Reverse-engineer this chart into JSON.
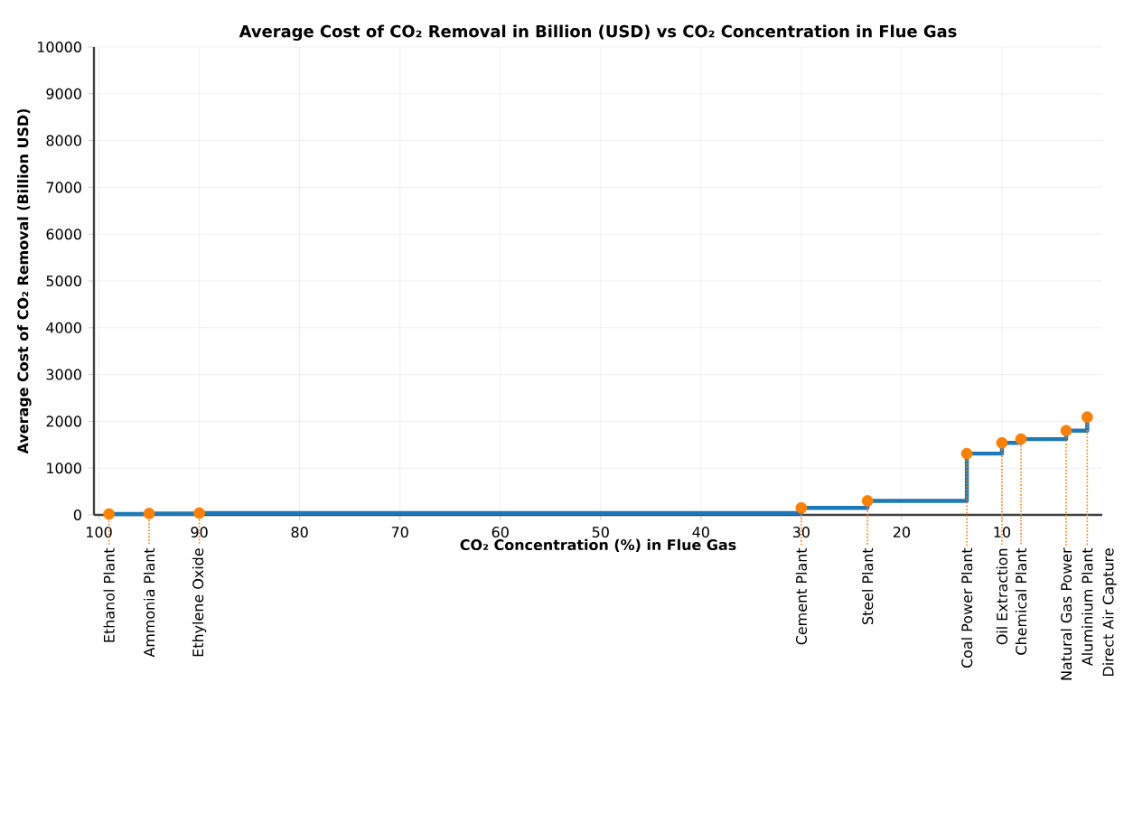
{
  "chart_data": {
    "type": "step",
    "title": "Average Cost of CO₂ Removal in Billion (USD) vs CO₂ Concentration in Flue Gas",
    "xlabel": "CO₂ Concentration (%) in Flue Gas",
    "ylabel": "Average Cost of CO₂ Removal (Billion USD)",
    "series": [
      {
        "color": "#1f77b4",
        "x": [
          99,
          95,
          90,
          30,
          23.4,
          13.5,
          10,
          8.1,
          3.6,
          1.5
        ],
        "values": [
          20,
          30,
          40,
          150,
          300,
          1310,
          1540,
          1620,
          1800,
          2090
        ]
      }
    ],
    "marker": "circle",
    "grid": true,
    "xlim": [
      100.5,
      0
    ],
    "xticks": [
      100,
      90,
      80,
      70,
      60,
      50,
      40,
      30,
      20,
      10
    ],
    "ylim": [
      0,
      10000
    ],
    "yticks": [
      0,
      1000,
      2000,
      3000,
      4000,
      5000,
      6000,
      7000,
      8000,
      9000,
      10000
    ],
    "annotations": [
      {
        "text": "Ethanol  Plant",
        "x": 99,
        "y": 20
      },
      {
        "text": "Ammonia  Plant",
        "x": 95,
        "y": 30
      },
      {
        "text": "Ethylene Oxide",
        "x": 90,
        "y": 40
      },
      {
        "text": "Cement Plant",
        "x": 30,
        "y": 150
      },
      {
        "text": "Steel Plant",
        "x": 23.4,
        "y": 300
      },
      {
        "text": "Coal Power Plant",
        "x": 13.5,
        "y": 1310
      },
      {
        "text": "Oil Extraction",
        "x": 10,
        "y": 1540
      },
      {
        "text": "Chemical Plant",
        "x": 8.1,
        "y": 1620
      },
      {
        "text": "Natural Gas Power",
        "x": 3.6,
        "y": 1800
      },
      {
        "text": "Aluminium Plant",
        "x": 1.5,
        "y": 2090
      },
      "Direct Air Capture"
    ]
  }
}
